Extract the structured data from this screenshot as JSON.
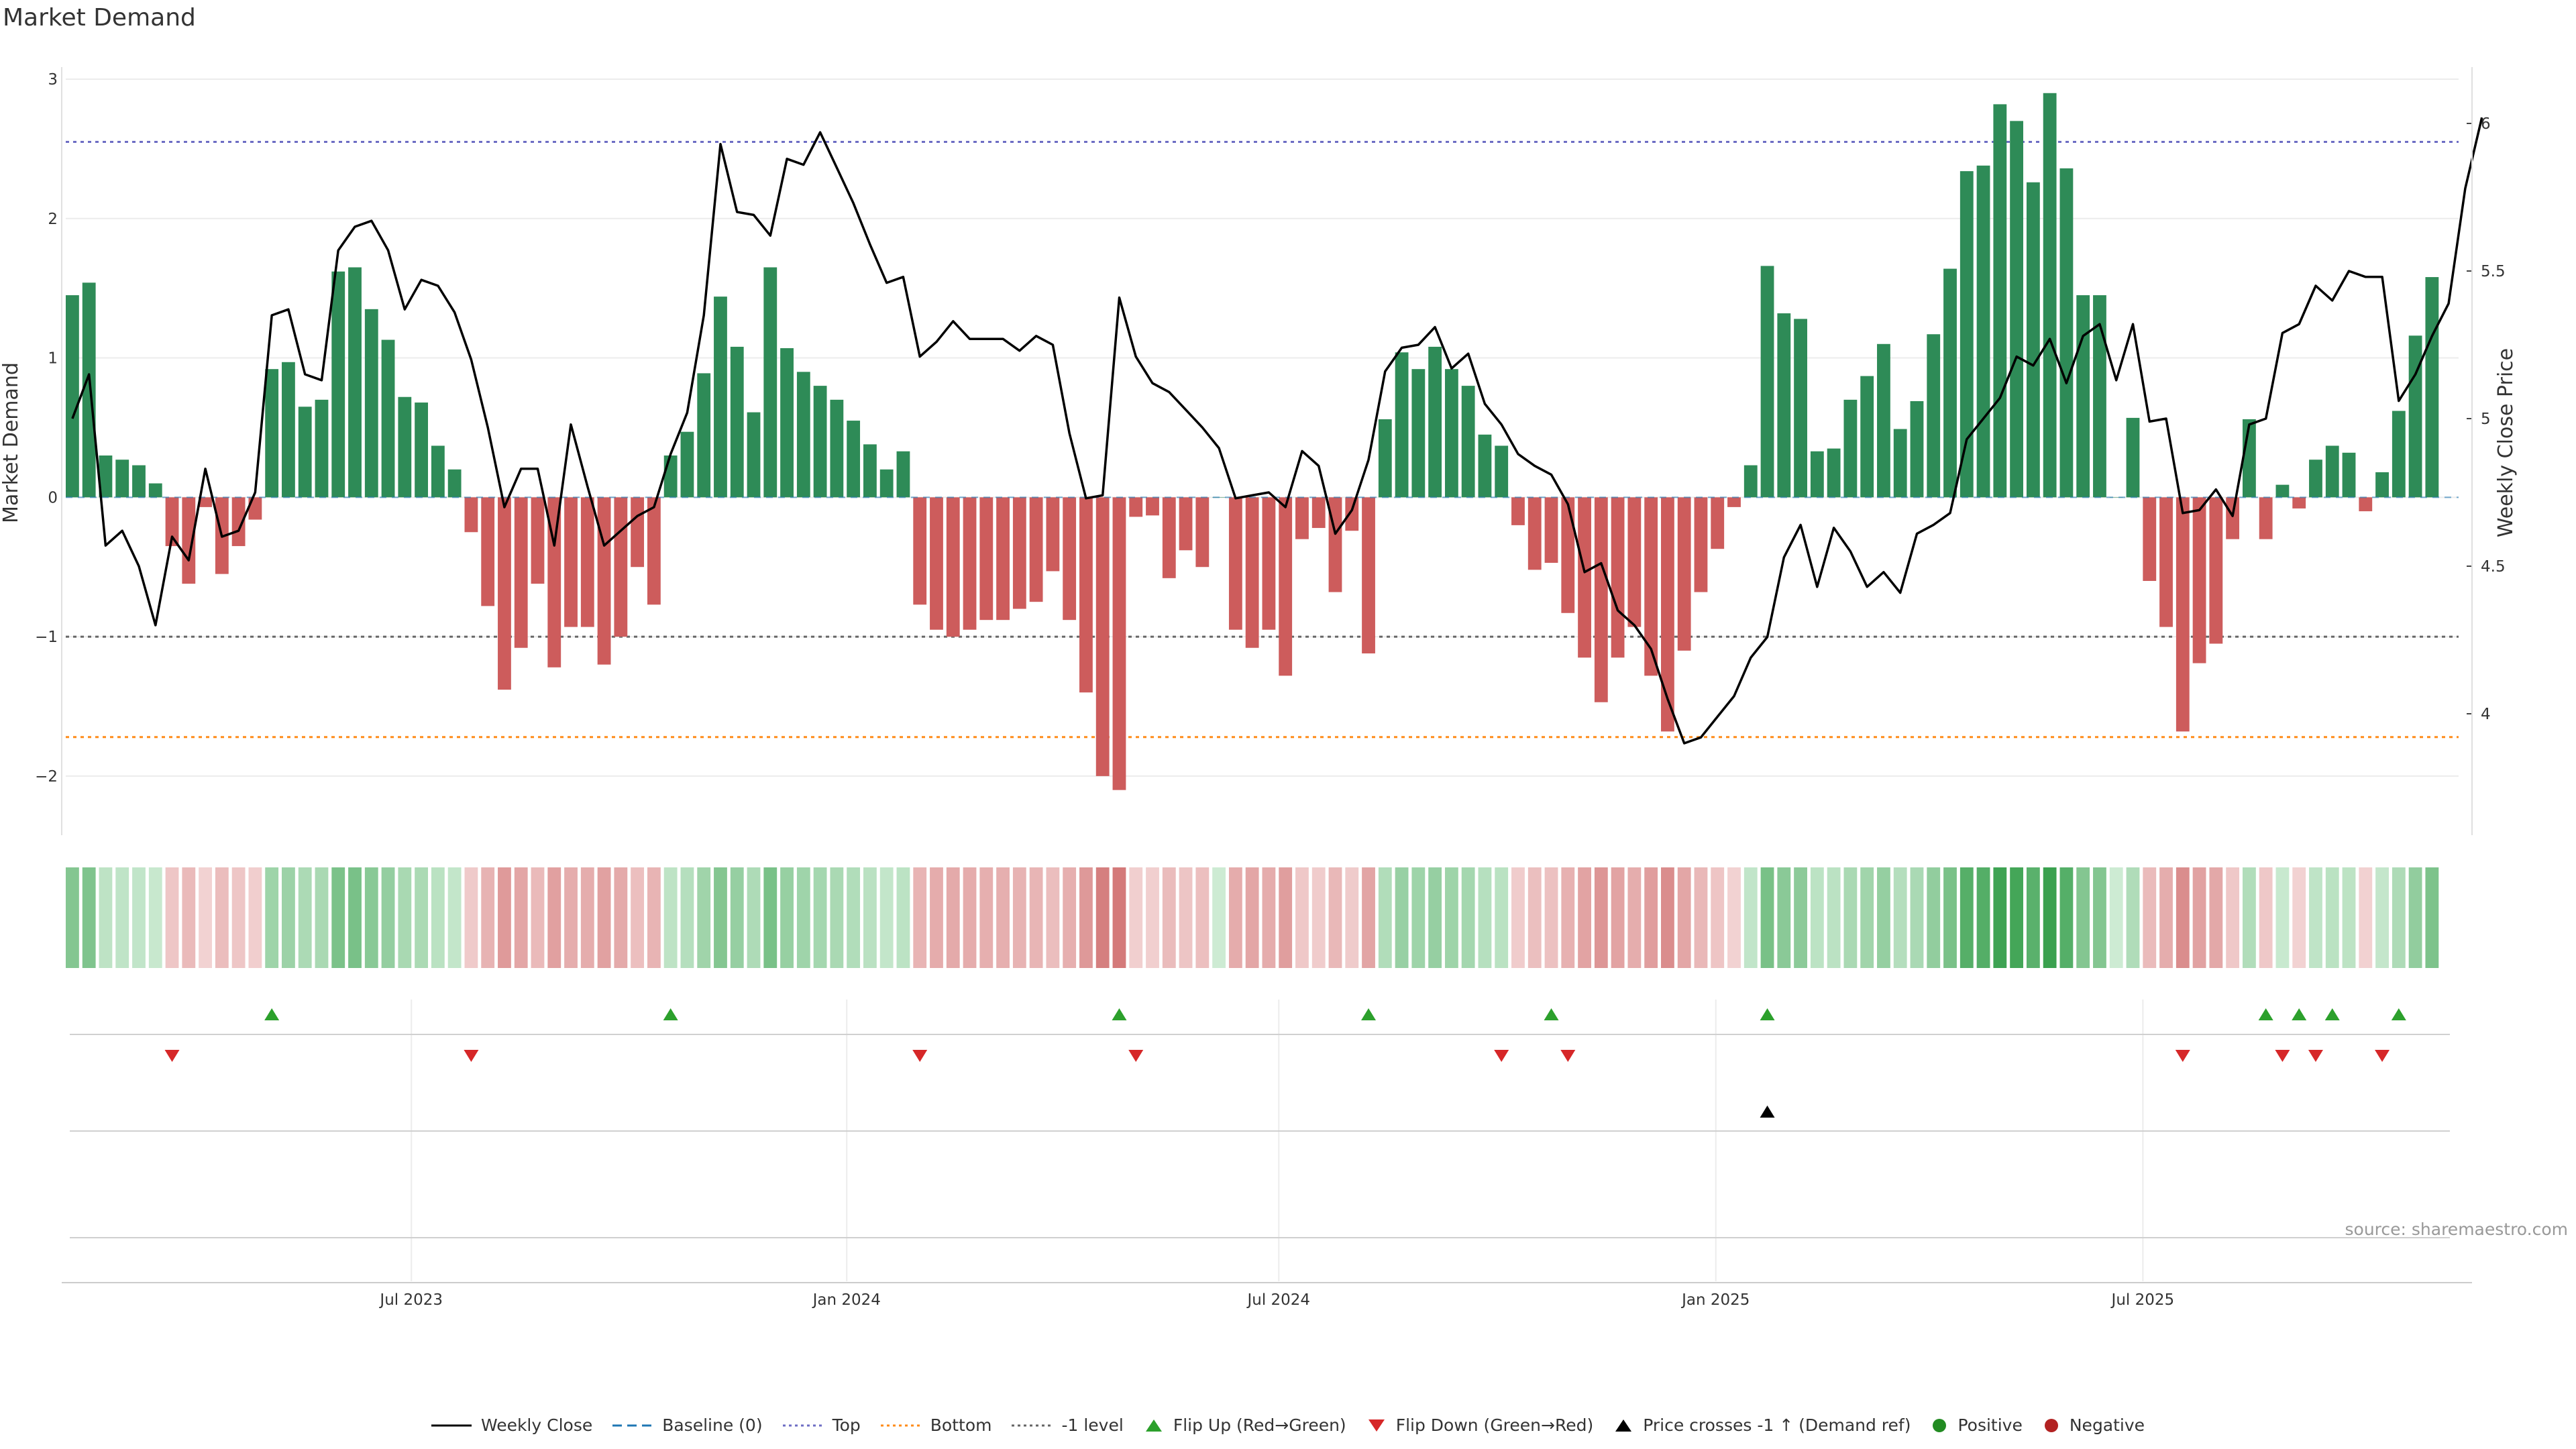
{
  "chart_data": {
    "type": "bar",
    "title": "Market Demand",
    "source": "source: sharemaestro.com",
    "ylabel_left": "Market Demand",
    "ylabel_right": "Weekly Close Price",
    "ylim_left": [
      -2.4,
      3.0
    ],
    "ylim_right": [
      3.6,
      6.15
    ],
    "yticks_left": [
      {
        "v": 3,
        "label": "3"
      },
      {
        "v": 2,
        "label": "2"
      },
      {
        "v": 1,
        "label": "1"
      },
      {
        "v": 0,
        "label": "0"
      },
      {
        "v": -1,
        "label": "−1"
      },
      {
        "v": -2,
        "label": "−2"
      }
    ],
    "yticks_right": [
      {
        "v": 6,
        "label": "6"
      },
      {
        "v": 5.5,
        "label": "5.5"
      },
      {
        "v": 5,
        "label": "5"
      },
      {
        "v": 4.5,
        "label": "4.5"
      },
      {
        "v": 4,
        "label": "4"
      }
    ],
    "x_start": "2023-02-06",
    "x_range_weeks": [
      -0.4,
      143.6
    ],
    "xticks": [
      {
        "week": 20.4,
        "label": "Jul 2023"
      },
      {
        "week": 46.6,
        "label": "Jan 2024"
      },
      {
        "week": 72.6,
        "label": "Jul 2024"
      },
      {
        "week": 98.9,
        "label": "Jan 2025"
      },
      {
        "week": 124.6,
        "label": "Jul 2025"
      }
    ],
    "reference_lines": {
      "top": 2.55,
      "bottom": -1.72,
      "minus_one": -1,
      "baseline": 0
    },
    "demand": [
      1.45,
      1.54,
      0.3,
      0.27,
      0.23,
      0.1,
      -0.35,
      -0.62,
      -0.07,
      -0.55,
      -0.35,
      -0.16,
      0.92,
      0.97,
      0.65,
      0.7,
      1.62,
      1.65,
      1.35,
      1.13,
      0.72,
      0.68,
      0.37,
      0.2,
      -0.25,
      -0.78,
      -1.38,
      -1.08,
      -0.62,
      -1.22,
      -0.93,
      -0.93,
      -1.2,
      -1.0,
      -0.5,
      -0.77,
      0.3,
      0.47,
      0.89,
      1.44,
      1.08,
      0.61,
      1.65,
      1.07,
      0.9,
      0.8,
      0.7,
      0.55,
      0.38,
      0.2,
      0.33,
      -0.77,
      -0.95,
      -1.0,
      -0.95,
      -0.88,
      -0.88,
      -0.8,
      -0.75,
      -0.53,
      -0.88,
      -1.4,
      -2.0,
      -2.1,
      -0.14,
      -0.13,
      -0.58,
      -0.38,
      -0.5,
      0.0,
      -0.95,
      -1.08,
      -0.95,
      -1.28,
      -0.3,
      -0.22,
      -0.68,
      -0.24,
      -1.12,
      0.56,
      1.04,
      0.92,
      1.08,
      0.92,
      0.8,
      0.45,
      0.37,
      -0.2,
      -0.52,
      -0.47,
      -0.83,
      -1.15,
      -1.47,
      -1.15,
      -0.93,
      -1.28,
      -1.68,
      -1.1,
      -0.68,
      -0.37,
      -0.07,
      0.23,
      1.66,
      1.32,
      1.28,
      0.33,
      0.35,
      0.7,
      0.87,
      1.1,
      0.49,
      0.69,
      1.17,
      1.64,
      2.34,
      2.38,
      2.82,
      2.7,
      2.26,
      2.9,
      2.36,
      1.45,
      1.45,
      0.0,
      0.57,
      -0.6,
      -0.93,
      -1.68,
      -1.19,
      -1.05,
      -0.3,
      0.56,
      -0.3,
      0.09,
      -0.08,
      0.27,
      0.37,
      0.32,
      -0.1,
      0.18,
      0.62,
      1.16,
      1.58
    ],
    "weekly_close": [
      5.0,
      5.15,
      4.57,
      4.62,
      4.5,
      4.3,
      4.6,
      4.52,
      4.83,
      4.6,
      4.62,
      4.75,
      5.35,
      5.37,
      5.15,
      5.13,
      5.57,
      5.65,
      5.67,
      5.57,
      5.37,
      5.47,
      5.45,
      5.36,
      5.2,
      4.97,
      4.7,
      4.83,
      4.83,
      4.57,
      4.98,
      4.77,
      4.57,
      4.62,
      4.67,
      4.7,
      4.88,
      5.02,
      5.35,
      5.93,
      5.7,
      5.69,
      5.62,
      5.88,
      5.86,
      5.97,
      5.85,
      5.73,
      5.59,
      5.46,
      5.48,
      5.21,
      5.26,
      5.33,
      5.27,
      5.27,
      5.27,
      5.23,
      5.28,
      5.25,
      4.95,
      4.73,
      4.74,
      5.41,
      5.21,
      5.12,
      5.09,
      5.03,
      4.97,
      4.9,
      4.73,
      4.74,
      4.75,
      4.7,
      4.89,
      4.84,
      4.61,
      4.69,
      4.86,
      5.16,
      5.24,
      5.25,
      5.31,
      5.17,
      5.22,
      5.05,
      4.98,
      4.88,
      4.84,
      4.81,
      4.71,
      4.48,
      4.51,
      4.35,
      4.3,
      4.22,
      4.05,
      3.9,
      3.92,
      3.99,
      4.06,
      4.19,
      4.26,
      4.53,
      4.64,
      4.43,
      4.63,
      4.55,
      4.43,
      4.48,
      4.41,
      4.61,
      4.64,
      4.68,
      4.93,
      5.0,
      5.07,
      5.21,
      5.18,
      5.27,
      5.12,
      5.28,
      5.32,
      5.13,
      5.32,
      4.99,
      5.0,
      4.68,
      4.69,
      4.76,
      4.67,
      4.98,
      5.0,
      5.29,
      5.32,
      5.45,
      5.4,
      5.5,
      5.48,
      5.48,
      5.06,
      5.15,
      5.28,
      5.39,
      5.78,
      6.02
    ]
  },
  "events": {
    "flip_up_weeks": [
      12,
      36,
      63,
      78,
      89,
      102,
      132,
      134,
      136,
      140
    ],
    "flip_down_weeks": [
      6,
      24,
      51,
      64,
      86,
      90,
      127,
      133,
      135,
      139
    ],
    "price_cross_weeks": [
      102
    ]
  },
  "legend": {
    "weekly_close": "Weekly Close",
    "baseline": "Baseline (0)",
    "top": "Top",
    "bottom": "Bottom",
    "minus_one": "-1 level",
    "flip_up": "Flip Up (Red→Green)",
    "flip_down": "Flip Down (Green→Red)",
    "price_cross": "Price crosses -1 ↑ (Demand ref)",
    "positive": "Positive",
    "negative": "Negative"
  },
  "colors": {
    "positive": "#2e8b57",
    "negative": "#cd5c5c",
    "price_line": "#000000",
    "top_line": "#6d6dc4",
    "bottom_line": "#ff8c1a",
    "minus_one_line": "#666666",
    "baseline_line": "#1f77b4",
    "flip_up_marker": "#2ca02c",
    "flip_down_marker": "#d62728",
    "cross_marker": "#000000",
    "legend_positive_dot": "#228b22",
    "legend_negative_dot": "#b22222"
  }
}
